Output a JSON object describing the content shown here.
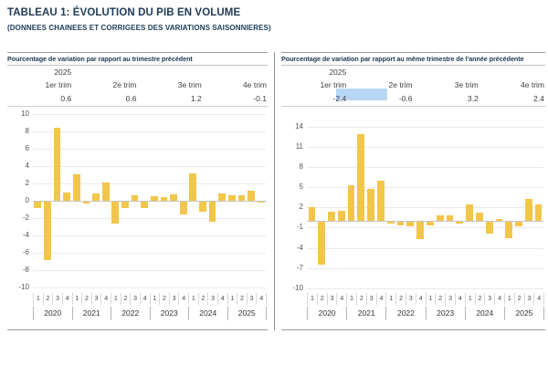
{
  "page": {
    "title": "TABLEAU 1: ÉVOLUTION DU PIB EN VOLUME",
    "subtitle": "(DONNEES CHAINEES ET CORRIGEES DES VARIATIONS SAISONNIERES)"
  },
  "theme": {
    "navy": "#1e3a56",
    "bar_color": "#f2c64a",
    "grid_color": "#eaeaea",
    "zero_line_color": "#c6c6c6",
    "axis_text_color": "#555555",
    "highlight_color": "#b9d7f5"
  },
  "panels": [
    {
      "title": "Pourcentage de variation par rapport au trimestre précédent",
      "year_label": "2025",
      "columns": [
        {
          "label": "1er trim",
          "value": "0.6"
        },
        {
          "label": "2e trim",
          "value": "0.6"
        },
        {
          "label": "3e trim",
          "value": "1.2"
        },
        {
          "label": "4e trim",
          "value": "-0.1"
        }
      ]
    },
    {
      "title": "Pourcentage de variation par rapport au même trimestre de l'année précédente",
      "year_label": "2025",
      "columns": [
        {
          "label": "1er trim",
          "value": "-2.4"
        },
        {
          "label": "2e trim",
          "value": "-0.6"
        },
        {
          "label": "3e trim",
          "value": "3.2"
        },
        {
          "label": "4e trim",
          "value": "2.4"
        }
      ],
      "selection_highlight": true
    }
  ],
  "chart_data": [
    {
      "type": "bar",
      "title": "Pourcentage de variation par rapport au trimestre précédent",
      "years": [
        "2020",
        "2021",
        "2022",
        "2023",
        "2024",
        "2025"
      ],
      "quarters": [
        "1",
        "2",
        "3",
        "4"
      ],
      "values": [
        -0.7,
        -6.7,
        8.4,
        0.9,
        3.1,
        -0.2,
        0.8,
        2.1,
        -2.5,
        -0.7,
        0.6,
        -0.7,
        0.5,
        0.4,
        0.7,
        -1.5,
        3.2,
        -1.2,
        -2.3,
        0.8,
        0.6,
        0.6,
        1.2,
        -0.1
      ],
      "yticks": [
        10,
        8,
        6,
        4,
        2,
        0,
        -2,
        -4,
        -6,
        -8,
        -10
      ],
      "ylim": [
        -10.4,
        10.2
      ],
      "grid": true,
      "legend": "none"
    },
    {
      "type": "bar",
      "title": "Pourcentage de variation par rapport au même trimestre de l'année précédente",
      "years": [
        "2020",
        "2021",
        "2022",
        "2023",
        "2024",
        "2025"
      ],
      "quarters": [
        "1",
        "2",
        "3",
        "4"
      ],
      "values": [
        2.1,
        -6.3,
        1.3,
        1.5,
        5.3,
        12.8,
        4.8,
        6.0,
        -0.3,
        -0.5,
        -0.7,
        -2.6,
        -0.5,
        0.8,
        0.8,
        -0.3,
        2.4,
        1.2,
        -1.7,
        0.3,
        -2.4,
        -0.6,
        3.2,
        2.4
      ],
      "yticks": [
        14,
        11,
        8,
        5,
        2,
        -1,
        -4,
        -7,
        -10
      ],
      "ylim": [
        -10.4,
        16.1
      ],
      "grid": true,
      "legend": "none"
    }
  ]
}
